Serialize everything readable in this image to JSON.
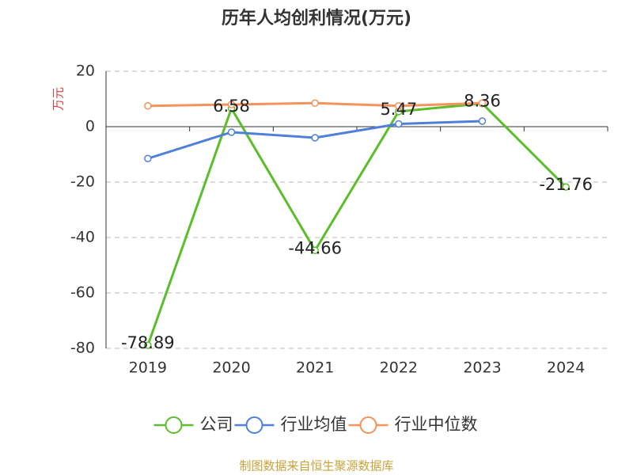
{
  "chart_data": {
    "type": "line",
    "title": "历年人均创利情况(万元)",
    "y_label": "万元",
    "categories": [
      "2019",
      "2020",
      "2021",
      "2022",
      "2023",
      "2024"
    ],
    "series": [
      {
        "name": "公司",
        "color": "#5cbd2b",
        "show_labels": true,
        "values": [
          -78.89,
          6.58,
          -44.66,
          5.47,
          8.36,
          -21.76
        ]
      },
      {
        "name": "行业均值",
        "color": "#4e7fd9",
        "values": [
          -11.5,
          -2,
          -4,
          1,
          2,
          null
        ]
      },
      {
        "name": "行业中位数",
        "color": "#f5935c",
        "values": [
          7.5,
          8,
          8.5,
          7.5,
          8.5,
          null
        ]
      }
    ],
    "ylim": [
      -80,
      20
    ],
    "yticks": [
      -80,
      -60,
      -40,
      -20,
      0,
      20
    ],
    "grid": true,
    "source": "制图数据来自恒生聚源数据库"
  }
}
